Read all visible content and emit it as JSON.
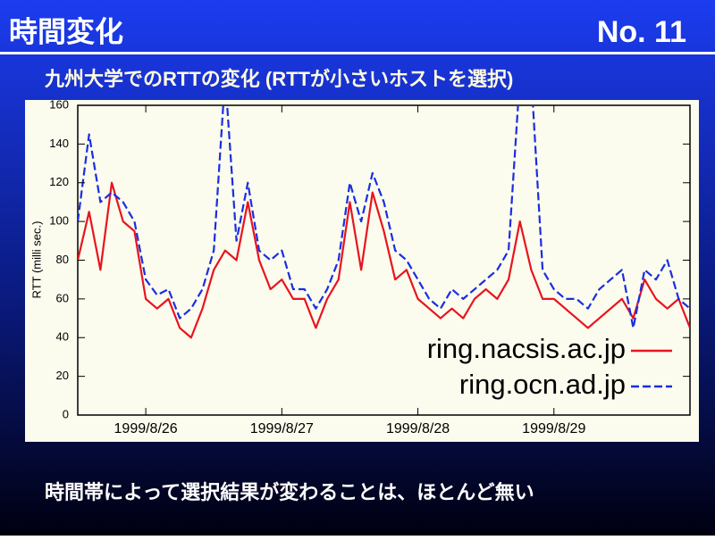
{
  "slide": {
    "title": "時間変化",
    "number": "No. 11",
    "subtitle": "九州大学でのRTTの変化 (RTTが小さいホストを選択)",
    "note": "時間帯によって選択結果が変わることは、ほとんど無い"
  },
  "chart_data": {
    "type": "line",
    "ylabel": "RTT (milli sec.)",
    "xlim": [
      0,
      54
    ],
    "xticks": [
      {
        "value": 6,
        "label": "1999/8/26"
      },
      {
        "value": 18,
        "label": "1999/8/27"
      },
      {
        "value": 30,
        "label": "1999/8/28"
      },
      {
        "value": 42,
        "label": "1999/8/29"
      }
    ],
    "ylim": [
      0,
      160
    ],
    "yticks": [
      0,
      20,
      40,
      60,
      80,
      100,
      120,
      140,
      160
    ],
    "legend": "lower right",
    "series": [
      {
        "name": "ring.nacsis.ac.jp",
        "color": "#e8141e",
        "dash": false,
        "values": [
          80,
          105,
          75,
          120,
          100,
          95,
          60,
          55,
          60,
          45,
          40,
          55,
          75,
          85,
          80,
          110,
          80,
          65,
          70,
          60,
          60,
          45,
          60,
          70,
          110,
          75,
          115,
          95,
          70,
          75,
          60,
          55,
          50,
          55,
          50,
          60,
          65,
          60,
          70,
          100,
          75,
          60,
          60,
          55,
          50,
          45,
          50,
          55,
          60,
          50,
          70,
          60,
          55,
          60,
          45
        ]
      },
      {
        "name": "ring.ocn.ad.jp",
        "color": "#1a2ee0",
        "dash": true,
        "values": [
          100,
          145,
          110,
          115,
          110,
          100,
          70,
          62,
          65,
          50,
          55,
          65,
          85,
          175,
          90,
          120,
          85,
          80,
          85,
          65,
          65,
          55,
          65,
          80,
          120,
          100,
          125,
          110,
          85,
          80,
          70,
          60,
          55,
          65,
          60,
          65,
          70,
          75,
          85,
          175,
          175,
          75,
          65,
          60,
          60,
          55,
          65,
          70,
          75,
          45,
          75,
          70,
          80,
          60,
          55
        ]
      }
    ]
  }
}
